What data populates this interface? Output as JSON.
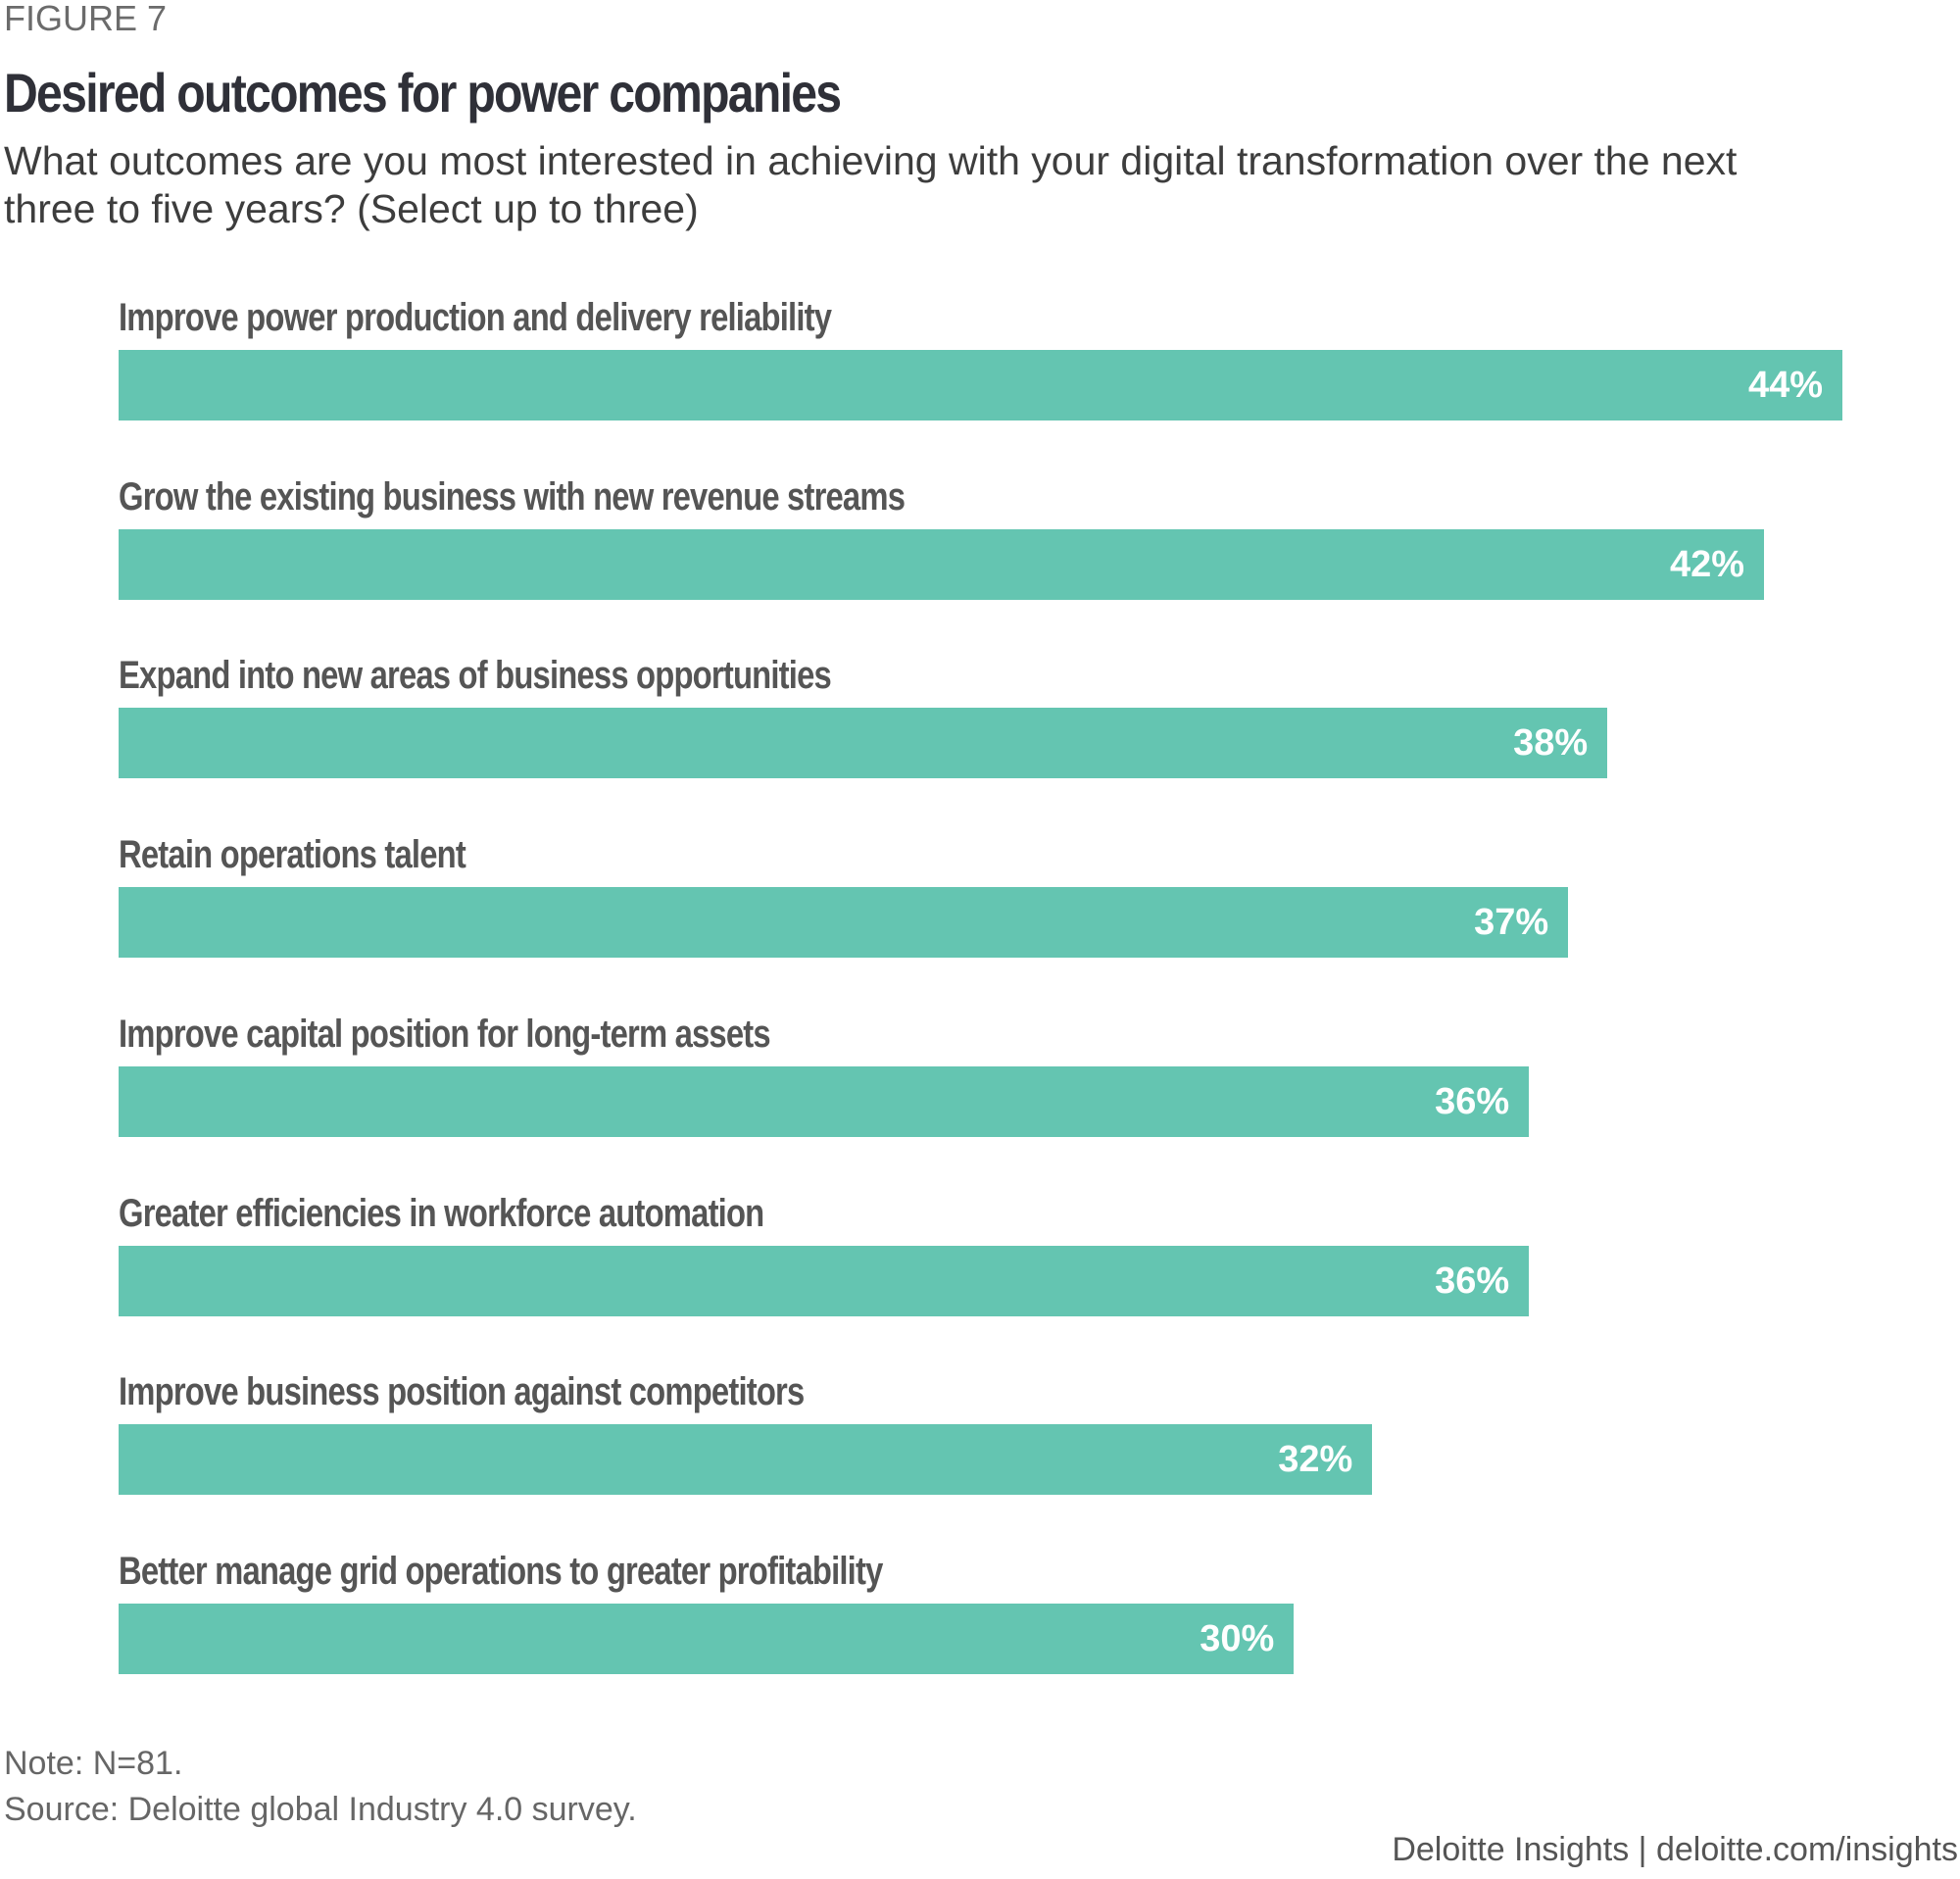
{
  "figure_label": "FIGURE 7",
  "colors": {
    "bar": "#64c5b1",
    "value_text": "#ffffff"
  },
  "chart_data": {
    "type": "bar",
    "orientation": "horizontal",
    "title": "Desired outcomes for power companies",
    "subtitle": "What outcomes are you most interested in achieving with your digital transformation over the next three to five years? (Select up to three)",
    "xlabel": "",
    "ylabel": "",
    "grid": false,
    "categories": [
      "Improve power production and delivery reliability",
      "Grow the existing business with new revenue streams",
      "Expand into new areas of business opportunities",
      "Retain operations talent",
      "Improve capital position for long-term assets",
      "Greater efficiencies in workforce automation",
      "Improve business position against competitors",
      "Better manage grid operations to greater profitability"
    ],
    "values": [
      44,
      42,
      38,
      37,
      36,
      36,
      32,
      30
    ],
    "value_labels": [
      "44%",
      "42%",
      "38%",
      "37%",
      "36%",
      "36%",
      "32%",
      "30%"
    ],
    "xlim": [
      0,
      44
    ]
  },
  "note": "Note: N=81.",
  "source": "Source: Deloitte global Industry 4.0 survey.",
  "footer": "Deloitte Insights | deloitte.com/insights"
}
